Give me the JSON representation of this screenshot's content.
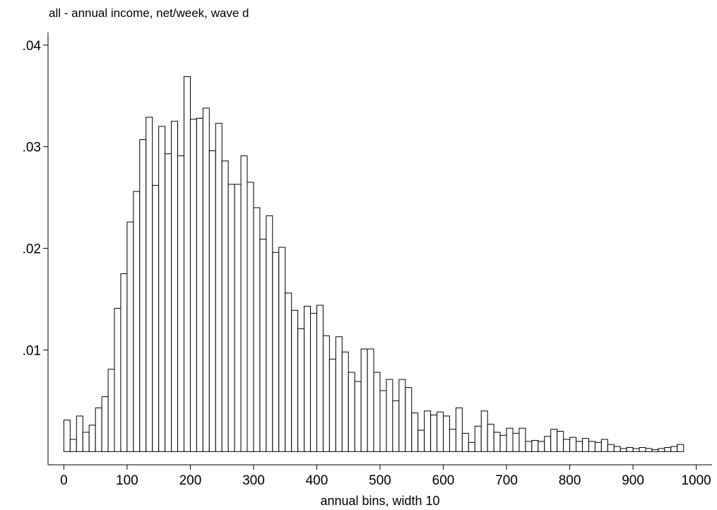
{
  "chart_data": {
    "type": "bar",
    "title": "all - annual income, net/week, wave d",
    "xlabel": "annual bins, width 10",
    "ylabel": "",
    "bin_width": 10,
    "x_start": 0,
    "xlim": [
      -25,
      1025
    ],
    "ylim": [
      -0.0013,
      0.0411
    ],
    "x_ticks": [
      0,
      100,
      200,
      300,
      400,
      500,
      600,
      700,
      800,
      900,
      1000
    ],
    "y_ticks": [
      0.01,
      0.02,
      0.03,
      0.04
    ],
    "x_tick_labels": [
      "0",
      "100",
      "200",
      "300",
      "400",
      "500",
      "600",
      "700",
      "800",
      "900",
      "1000"
    ],
    "y_tick_labels": [
      ".01",
      ".02",
      ".03",
      ".04"
    ],
    "grid": false,
    "bar_fill": "#ffffff",
    "bar_stroke": "#000000",
    "values": [
      0.0031,
      0.0012,
      0.0035,
      0.0019,
      0.0026,
      0.0043,
      0.0054,
      0.0081,
      0.0141,
      0.0175,
      0.0226,
      0.0256,
      0.0307,
      0.0329,
      0.0262,
      0.032,
      0.0293,
      0.0325,
      0.0291,
      0.0369,
      0.0327,
      0.0328,
      0.0338,
      0.0296,
      0.0323,
      0.0286,
      0.0263,
      0.0263,
      0.0291,
      0.0265,
      0.024,
      0.0209,
      0.0232,
      0.0196,
      0.0201,
      0.0156,
      0.0139,
      0.0121,
      0.0143,
      0.0136,
      0.0144,
      0.0114,
      0.0091,
      0.0113,
      0.0098,
      0.0078,
      0.0069,
      0.0101,
      0.0101,
      0.0078,
      0.006,
      0.0071,
      0.005,
      0.0071,
      0.0063,
      0.0038,
      0.0021,
      0.004,
      0.0036,
      0.0039,
      0.0035,
      0.0022,
      0.0043,
      0.0018,
      0.0009,
      0.0025,
      0.004,
      0.0027,
      0.0019,
      0.0016,
      0.0023,
      0.0018,
      0.0023,
      0.001,
      0.0011,
      0.001,
      0.0015,
      0.0022,
      0.002,
      0.0012,
      0.0014,
      0.001,
      0.0013,
      0.001,
      0.0009,
      0.0012,
      0.0007,
      0.0005,
      0.0003,
      0.0004,
      0.0003,
      0.0004,
      0.0003,
      0.0002,
      0.0003,
      0.0004,
      0.0005,
      0.0007
    ]
  }
}
